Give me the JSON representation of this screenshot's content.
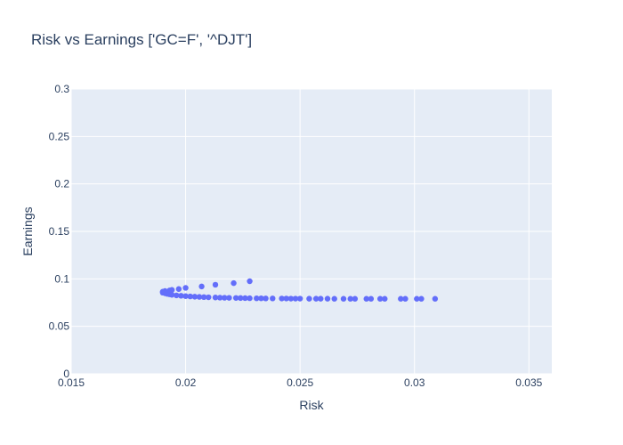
{
  "chart_data": {
    "type": "scatter",
    "title": "Risk vs Earnings ['GC=F', '^DJT']",
    "xlabel": "Risk",
    "ylabel": "Earnings",
    "xlim": [
      0.015,
      0.036
    ],
    "ylim": [
      0,
      0.3
    ],
    "x_ticks": [
      0.015,
      0.02,
      0.025,
      0.03,
      0.035
    ],
    "x_tick_labels": [
      "0.015",
      "0.02",
      "0.025",
      "0.03",
      "0.035"
    ],
    "y_ticks": [
      0,
      0.05,
      0.1,
      0.15,
      0.2,
      0.25,
      0.3
    ],
    "y_tick_labels": [
      "0",
      "0.05",
      "0.1",
      "0.15",
      "0.2",
      "0.25",
      "0.3"
    ],
    "grid": true,
    "colors": {
      "marker": "#636efa",
      "plot_bg": "#e5ecf6",
      "grid": "#ffffff",
      "text": "#2a3f5f"
    },
    "series": [
      {
        "x": [
          0.019,
          0.0191,
          0.0192,
          0.0193,
          0.0194,
          0.0196,
          0.0198,
          0.02,
          0.0202,
          0.0204,
          0.0206,
          0.0208,
          0.021,
          0.0213,
          0.0215,
          0.0217,
          0.0219,
          0.0222,
          0.0224,
          0.0226,
          0.0228,
          0.0231,
          0.0233,
          0.0235,
          0.0238,
          0.0242,
          0.0244,
          0.0246,
          0.0248,
          0.025,
          0.0254,
          0.0257,
          0.0259,
          0.0262,
          0.0265,
          0.0269,
          0.0272,
          0.0274,
          0.0279,
          0.0281,
          0.0285,
          0.0287,
          0.0294,
          0.0296,
          0.0301,
          0.0303,
          0.0309,
          0.019,
          0.0191,
          0.0193,
          0.0194,
          0.0197,
          0.02,
          0.0207,
          0.0213,
          0.0221,
          0.0228
        ],
        "y": [
          0.0855,
          0.0848,
          0.0842,
          0.0837,
          0.0832,
          0.0826,
          0.0822,
          0.0818,
          0.0815,
          0.0812,
          0.081,
          0.0808,
          0.0806,
          0.0804,
          0.0802,
          0.0801,
          0.08,
          0.0799,
          0.0798,
          0.0797,
          0.0796,
          0.0795,
          0.0795,
          0.0794,
          0.0794,
          0.0793,
          0.0793,
          0.0792,
          0.0792,
          0.0792,
          0.0791,
          0.0791,
          0.0791,
          0.0791,
          0.079,
          0.079,
          0.079,
          0.079,
          0.079,
          0.079,
          0.079,
          0.079,
          0.079,
          0.079,
          0.079,
          0.079,
          0.079,
          0.0865,
          0.0872,
          0.0878,
          0.0884,
          0.0893,
          0.0905,
          0.092,
          0.0938,
          0.0955,
          0.0975
        ]
      }
    ]
  }
}
